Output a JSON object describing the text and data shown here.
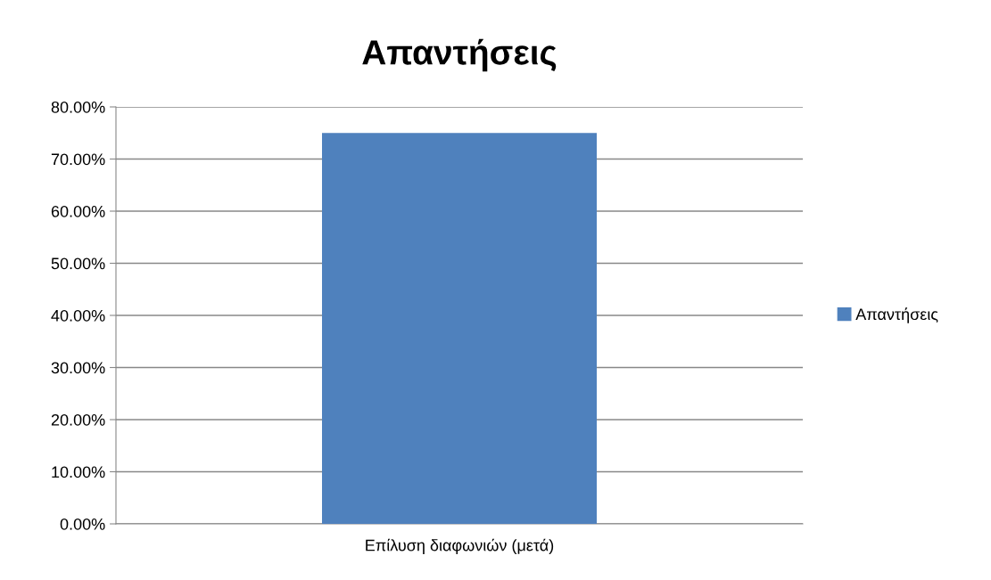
{
  "chart_data": {
    "type": "bar",
    "title": "Απαντήσεις",
    "categories": [
      "Επίλυση διαφωνιών (μετά)"
    ],
    "series": [
      {
        "name": "Απαντήσεις",
        "color": "#4f81bd",
        "values": [
          75
        ]
      }
    ],
    "ylim": [
      0,
      80
    ],
    "yticks": [
      {
        "value": 0,
        "label": "0.00%"
      },
      {
        "value": 10,
        "label": "10.00%"
      },
      {
        "value": 20,
        "label": "20.00%"
      },
      {
        "value": 30,
        "label": "30.00%"
      },
      {
        "value": 40,
        "label": "40.00%"
      },
      {
        "value": 50,
        "label": "50.00%"
      },
      {
        "value": 60,
        "label": "60.00%"
      },
      {
        "value": 70,
        "label": "70.00%"
      },
      {
        "value": 80,
        "label": "80.00%"
      }
    ],
    "grid": "y",
    "legend": "right"
  }
}
